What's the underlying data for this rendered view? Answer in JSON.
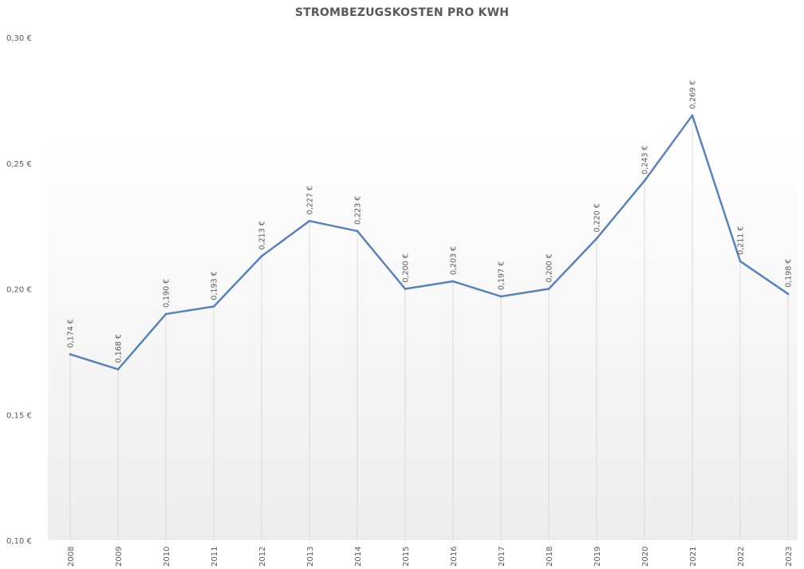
{
  "chart_data": {
    "type": "line",
    "title": "STROMBEZUGSKOSTEN PRO KWH",
    "xlabel": "",
    "ylabel": "",
    "x": [
      "2008",
      "2009",
      "2010",
      "2011",
      "2012",
      "2013",
      "2014",
      "2015",
      "2016",
      "2017",
      "2018",
      "2019",
      "2020",
      "2021",
      "2022",
      "2023"
    ],
    "series": [
      {
        "values": [
          0.174,
          0.168,
          0.19,
          0.193,
          0.213,
          0.227,
          0.223,
          0.2,
          0.203,
          0.197,
          0.2,
          0.22,
          0.243,
          0.269,
          0.211,
          0.198
        ],
        "data_labels": [
          "0,174 €",
          "0,168 €",
          "0,190 €",
          "0,193 €",
          "0,213 €",
          "0,227 €",
          "0,223 €",
          "0,200 €",
          "0,203 €",
          "0,197 €",
          "0,200 €",
          "0,220 €",
          "0,243 €",
          "0,269 €",
          "0,211 €",
          "0,198 €"
        ],
        "color": "#5b82b5"
      }
    ],
    "ylim": [
      0.1,
      0.3
    ],
    "y_ticks": [
      0.1,
      0.15,
      0.2,
      0.25,
      0.3
    ],
    "y_tick_labels": [
      "0,10 €",
      "0,15 €",
      "0,20 €",
      "0,25 €",
      "0,30 €"
    ],
    "grid": "vertical drop lines",
    "legend": "none",
    "background_gradient": [
      "#ffffff",
      "#ededed"
    ]
  }
}
